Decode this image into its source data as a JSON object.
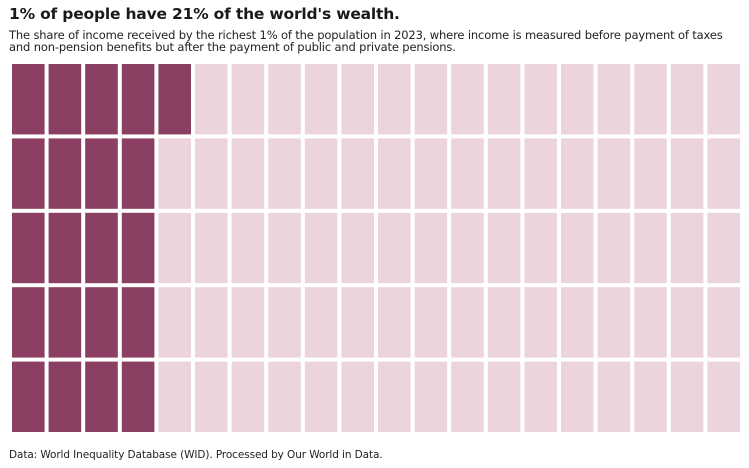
{
  "header": {
    "title": "1% of people have 21% of the world's wealth.",
    "subtitle": "The share of income received by the richest 1% of the population in 2023, where income is measured before payment of taxes and non-pension benefits but after the payment of public and private pensions."
  },
  "footer": {
    "source": "Data: World Inequality Database (WID). Processed by Our World in Data."
  },
  "colors": {
    "highlight": "#8b3f62",
    "background_cell": "#ebd4de"
  },
  "chart_data": {
    "type": "waffle",
    "rows": 5,
    "columns": 20,
    "total_cells": 100,
    "highlighted_cells": 21,
    "fill_order": "column-major, left to right, top to bottom",
    "value_percent": 21,
    "title": "1% of people have 21% of the world's wealth.",
    "subtitle": "The share of income received by the richest 1% of the population in 2023, where income is measured before payment of taxes and non-pension benefits but after the payment of public and private pensions."
  }
}
